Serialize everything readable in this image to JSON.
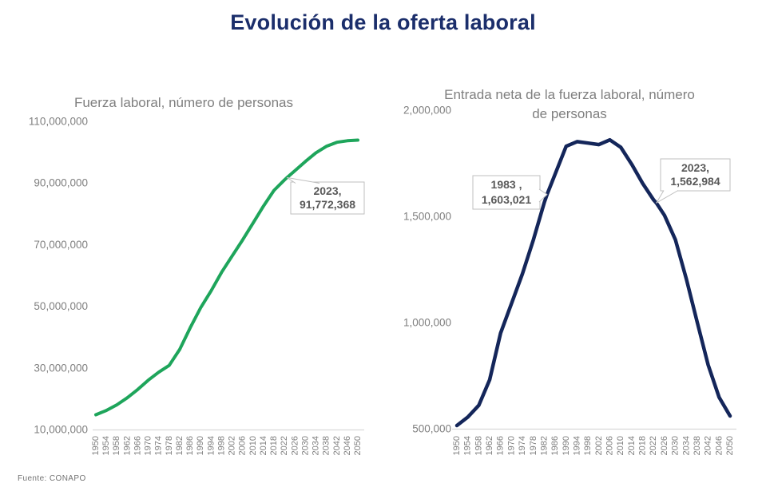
{
  "main_title": "Evolución de la oferta laboral",
  "source": "Fuente: CONAPO",
  "colors": {
    "title_text": "#1b2e6b",
    "chart_title_text": "#7f7f7f",
    "axis_text": "#7f7f7f",
    "axis_line": "#d9d9d9",
    "left_line": "#1ea55b",
    "right_line": "#14265a",
    "callout_text": "#595959",
    "callout_border": "#bfbfbf",
    "callout_fill": "#ffffff",
    "source_text": "#737373"
  },
  "chart_data": [
    {
      "type": "line",
      "title": "Fuerza laboral, número de personas",
      "series_name": "Fuerza laboral",
      "line_color": "#1ea55b",
      "grid": false,
      "legend": "none",
      "xlim": [
        1950,
        2050
      ],
      "ylim": [
        10000000,
        110000000
      ],
      "y_tick_labels": [
        "110,000,000",
        "90,000,000",
        "70,000,000",
        "50,000,000",
        "30,000,000",
        "10,000,000"
      ],
      "y_tick_values": [
        110000000,
        90000000,
        70000000,
        50000000,
        30000000,
        10000000
      ],
      "x_ticks": [
        "1950",
        "1954",
        "1958",
        "1962",
        "1966",
        "1970",
        "1974",
        "1978",
        "1982",
        "1986",
        "1990",
        "1994",
        "1998",
        "2002",
        "2006",
        "2010",
        "2014",
        "2018",
        "2022",
        "2026",
        "2030",
        "2034",
        "2038",
        "2042",
        "2046",
        "2050"
      ],
      "x": [
        1950,
        1954,
        1958,
        1962,
        1966,
        1970,
        1974,
        1978,
        1982,
        1986,
        1990,
        1994,
        1998,
        2002,
        2006,
        2010,
        2014,
        2018,
        2022,
        2023,
        2026,
        2030,
        2034,
        2038,
        2042,
        2046,
        2050
      ],
      "values": [
        14800000,
        16200000,
        18000000,
        20300000,
        23000000,
        26000000,
        28600000,
        30800000,
        36000000,
        43000000,
        49500000,
        55000000,
        61000000,
        66300000,
        71500000,
        77000000,
        82500000,
        87600000,
        91000000,
        91772368,
        94000000,
        97000000,
        99800000,
        101900000,
        103200000,
        103700000,
        103900000
      ],
      "callouts": [
        {
          "text_line1": "2023,",
          "text_line2": "91,772,368",
          "x": 2023,
          "y": 91772368
        }
      ]
    },
    {
      "type": "line",
      "title": "Entrada neta de la fuerza laboral, número de personas",
      "series_name": "Entrada neta de la fuerza laboral",
      "line_color": "#14265a",
      "grid": false,
      "legend": "none",
      "xlim": [
        1950,
        2050
      ],
      "ylim": [
        500000,
        2000000
      ],
      "y_tick_labels": [
        "2,000,000",
        "1,500,000",
        "1,000,000",
        "500,000"
      ],
      "y_tick_values": [
        2000000,
        1500000,
        1000000,
        500000
      ],
      "x_ticks": [
        "1950",
        "1954",
        "1958",
        "1962",
        "1966",
        "1970",
        "1974",
        "1978",
        "1982",
        "1986",
        "1990",
        "1994",
        "1998",
        "2002",
        "2006",
        "2010",
        "2014",
        "2018",
        "2022",
        "2026",
        "2030",
        "2034",
        "2038",
        "2042",
        "2046",
        "2050"
      ],
      "x": [
        1950,
        1954,
        1958,
        1962,
        1966,
        1970,
        1974,
        1978,
        1982,
        1983,
        1986,
        1990,
        1994,
        1998,
        2002,
        2006,
        2010,
        2014,
        2018,
        2022,
        2023,
        2026,
        2030,
        2034,
        2038,
        2042,
        2046,
        2050
      ],
      "values": [
        515000,
        555000,
        610000,
        730000,
        950000,
        1090000,
        1230000,
        1390000,
        1565000,
        1603021,
        1700000,
        1830000,
        1852000,
        1845000,
        1838000,
        1860000,
        1825000,
        1745000,
        1655000,
        1578000,
        1562984,
        1505000,
        1390000,
        1205000,
        1000000,
        800000,
        648000,
        560000
      ],
      "callouts": [
        {
          "text_line1": "1983 ,",
          "text_line2": "1,603,021",
          "x": 1983,
          "y": 1603021
        },
        {
          "text_line1": "2023,",
          "text_line2": "1,562,984",
          "x": 2023,
          "y": 1562984
        }
      ]
    }
  ]
}
